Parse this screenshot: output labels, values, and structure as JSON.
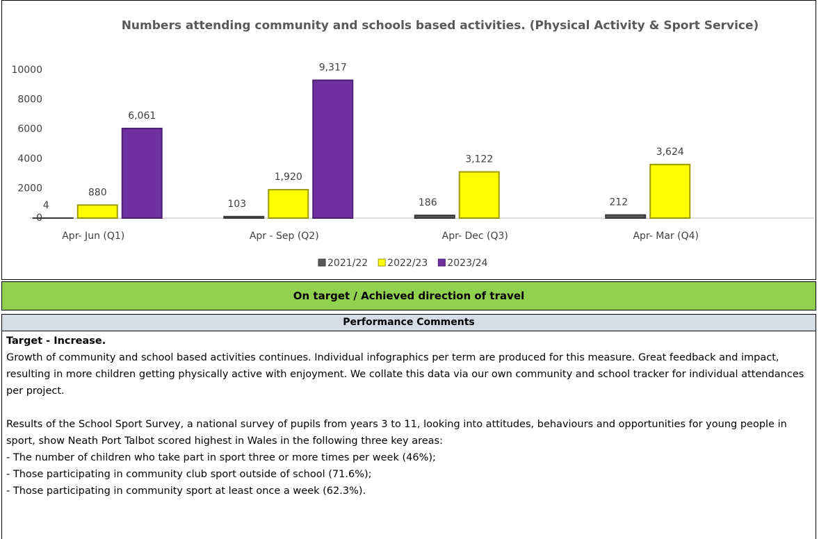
{
  "chart_data": {
    "type": "bar",
    "title": "Numbers attending community and schools based activities.   (Physical Activity & Sport Service)",
    "categories": [
      "Apr- Jun  (Q1)",
      "Apr - Sep  (Q2)",
      "Apr- Dec  (Q3)",
      "Apr- Mar  (Q4)"
    ],
    "series": [
      {
        "name": "2021/22",
        "color": "#595959",
        "values": [
          4,
          103,
          186,
          212
        ]
      },
      {
        "name": "2022/23",
        "color": "#ffff00",
        "values": [
          880,
          1920,
          3122,
          3624
        ],
        "value_labels": [
          "880",
          "1,920",
          "3,122",
          "3,624"
        ]
      },
      {
        "name": "2023/24",
        "color": "#7030a0",
        "values": [
          6061,
          9317,
          null,
          null
        ],
        "value_labels": [
          "6,061",
          "9,317",
          null,
          null
        ]
      }
    ],
    "ylim": [
      0,
      10000
    ],
    "yticks": [
      0,
      2000,
      4000,
      6000,
      8000,
      10000
    ],
    "grid": false,
    "legend": "bottom"
  },
  "status": "On target / Achieved direction of travel",
  "comments": {
    "heading": "Performance Comments",
    "target": "Target - Increase.",
    "paragraphs": [
      "Growth of community and school based activities continues. Individual infographics per term are produced for this measure. Great feedback and impact, resulting in more children getting physically active with enjoyment. We collate this data via our own community and school tracker for individual attendances per project.",
      "Results of the School Sport Survey, a national survey of pupils from years 3 to 11, looking into attitudes, behaviours and opportunities for young people in sport, show Neath Port Talbot scored highest in Wales in the following three key areas:"
    ],
    "bullets": [
      "-   The number of children who take part in sport three or more times per week (46%);",
      "-   Those participating in community club sport outside of school (71.6%);",
      "-   Those participating in community sport at least once a week (62.3%)."
    ]
  }
}
